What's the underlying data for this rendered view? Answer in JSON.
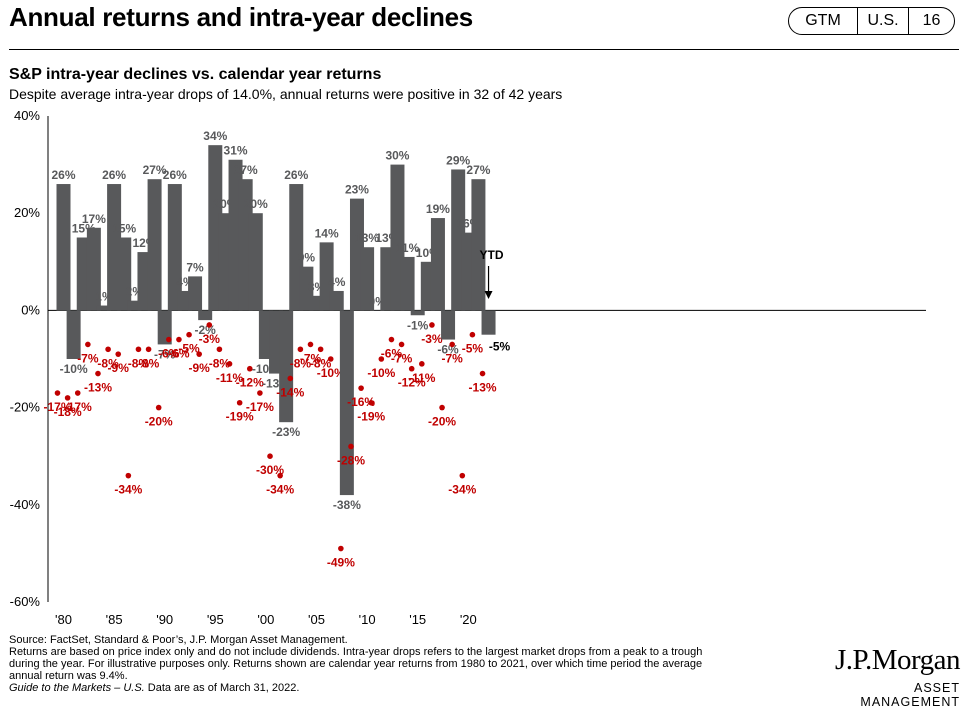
{
  "header": {
    "title": "Annual returns and intra-year declines",
    "badge": [
      "GTM",
      "U.S.",
      "16"
    ]
  },
  "chart_title": "S&P intra-year declines vs. calendar year returns",
  "chart_subtitle": "Despite average intra-year drops of 14.0%, annual returns were positive in 32 of 42 years",
  "chart_data": {
    "type": "bar",
    "title": "S&P intra-year declines vs. calendar year returns",
    "ylim": [
      -60,
      40
    ],
    "yticks": [
      "40%",
      "20%",
      "0%",
      "-20%",
      "-40%",
      "-60%"
    ],
    "ytick_values": [
      40,
      20,
      0,
      -20,
      -40,
      -60
    ],
    "xticks": [
      "'80",
      "'85",
      "'90",
      "'95",
      "'00",
      "'05",
      "'10",
      "'15",
      "'20"
    ],
    "xtick_years": [
      1980,
      1985,
      1990,
      1995,
      2000,
      2005,
      2010,
      2015,
      2020
    ],
    "years": [
      1980,
      1981,
      1982,
      1983,
      1984,
      1985,
      1986,
      1987,
      1988,
      1989,
      1990,
      1991,
      1992,
      1993,
      1994,
      1995,
      1996,
      1997,
      1998,
      1999,
      2000,
      2001,
      2002,
      2003,
      2004,
      2005,
      2006,
      2007,
      2008,
      2009,
      2010,
      2011,
      2012,
      2013,
      2014,
      2015,
      2016,
      2017,
      2018,
      2019,
      2020,
      2021,
      2022
    ],
    "series": [
      {
        "name": "Calendar year return",
        "color": "#58595b",
        "values": [
          26,
          -10,
          15,
          17,
          1,
          26,
          15,
          2,
          12,
          27,
          -7,
          26,
          4,
          7,
          -2,
          34,
          20,
          31,
          27,
          20,
          -10,
          -13,
          -23,
          26,
          9,
          3,
          14,
          4,
          -38,
          23,
          13,
          0,
          13,
          30,
          11,
          -1,
          10,
          19,
          -6,
          29,
          16,
          27,
          -5
        ],
        "labels": [
          "26%",
          "-10%",
          "15%",
          "17%",
          "1%",
          "26%",
          "15%",
          "2%",
          "12%",
          "27%",
          "-7%",
          "26%",
          "4%",
          "7%",
          "-2%",
          "34%",
          "20%",
          "31%",
          "27%",
          "20%",
          "-10%",
          "-13%",
          "-23%",
          "26%",
          "9%",
          "3%",
          "14%",
          "4%",
          "-38%",
          "23%",
          "13%",
          "0%",
          "13%",
          "30%",
          "11%",
          "-1%",
          "10%",
          "19%",
          "-6%",
          "29%",
          "16%",
          "27%",
          "-5%"
        ]
      },
      {
        "name": "Intra-year decline",
        "color": "#c00000",
        "values": [
          -17,
          -18,
          -17,
          -7,
          -13,
          -8,
          -9,
          -34,
          -8,
          -8,
          -20,
          -6,
          -6,
          -5,
          -9,
          -3,
          -8,
          -11,
          -19,
          -12,
          -17,
          -30,
          -34,
          -14,
          -8,
          -7,
          -8,
          -10,
          -49,
          -28,
          -16,
          -19,
          -10,
          -6,
          -7,
          -12,
          -11,
          -3,
          -20,
          -7,
          -34,
          -5,
          -13
        ],
        "labels": [
          "-17%",
          "-18%",
          "-17%",
          "-7%",
          "-13%",
          "-8%",
          "-9%",
          "-34%",
          "-8%",
          "-8%",
          "-20%",
          "-6%",
          "-6%",
          "-5%",
          "-9%",
          "-3%",
          "-8%",
          "-11%",
          "-19%",
          "-12%",
          "-17%",
          "-30%",
          "-34%",
          "-14%",
          "-8%",
          "-7%",
          "-8%",
          "-10%",
          "-49%",
          "-28%",
          "-16%",
          "-19%",
          "-10%",
          "-6%",
          "-7%",
          "-12%",
          "-11%",
          "-3%",
          "-20%",
          "-7%",
          "-34%",
          "-5%",
          "-13%"
        ]
      }
    ],
    "annotation": "YTD",
    "bar_color": "#58595b",
    "dot_color": "#c00000"
  },
  "footnotes": {
    "source": "Source: FactSet, Standard & Poor’s, J.P. Morgan Asset Management.",
    "note1": "Returns are based on price index only and do not include dividends. Intra-year drops refers to the largest market drops from a peak to a trough",
    "note2": "during the year. For illustrative purposes only. Returns shown are calendar year returns from 1980 to 2021, over which time period the average",
    "note3": "annual return was 9.4%.",
    "guide": "Guide to the Markets – U.S.",
    "date": " Data are as of March 31, 2022."
  },
  "logo": {
    "name": "J.P.Morgan",
    "sub": "ASSET MANAGEMENT"
  }
}
